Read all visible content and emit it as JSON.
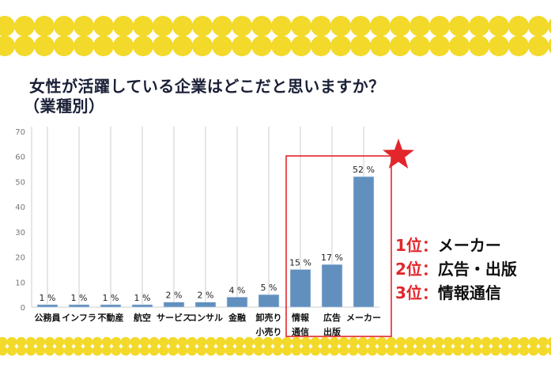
{
  "title_line1": "女性が活躍している企業はどこだと思いますか？",
  "title_line2": "（業種別）",
  "colors": {
    "dots": "#f3d92a",
    "bar": "#6190bf",
    "highlight": "#e2262c",
    "title": "#1a1f36"
  },
  "chart_data": {
    "type": "bar",
    "categories": [
      "公務員",
      "インフラ",
      "不動産",
      "航空",
      "サービス",
      "コンサル",
      "金融",
      "卸売り\n小売り",
      "情報\n通信",
      "広告\n出版",
      "メーカー"
    ],
    "values": [
      1,
      1,
      1,
      1,
      2,
      2,
      4,
      5,
      15,
      17,
      52
    ],
    "data_labels": [
      "1 %",
      "1 %",
      "1 %",
      "1 %",
      "2 %",
      "2 %",
      "4 %",
      "5 %",
      "15 %",
      "17 %",
      "52 %"
    ],
    "ylim": [
      0,
      70
    ],
    "yticks": [
      0,
      10,
      20,
      30,
      40,
      50,
      60,
      70
    ],
    "grid": "vertical",
    "highlighted_categories": [
      "情報\n通信",
      "広告\n出版",
      "メーカー"
    ]
  },
  "ranking": [
    {
      "position": "1位",
      "colon": "：",
      "name": "メーカー"
    },
    {
      "position": "2位",
      "colon": "：",
      "name": "広告・出版"
    },
    {
      "position": "3位",
      "colon": "：",
      "name": "情報通信"
    }
  ],
  "star_icon": "star"
}
